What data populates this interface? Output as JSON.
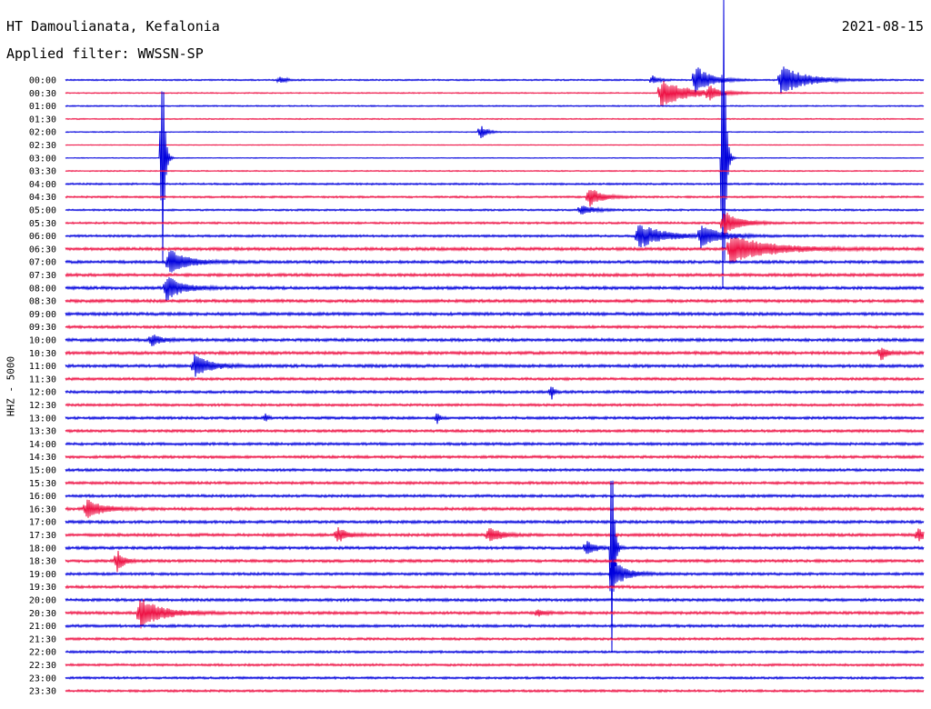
{
  "header": {
    "station": "HT Damoulianata, Kefalonia",
    "date": "2021-08-15",
    "filter": "Applied filter: WWSSN-SP"
  },
  "chart_data": {
    "type": "line",
    "subtype": "helicorder",
    "ylabel": "HHZ - 5000",
    "row_labels": [
      "00:00",
      "00:30",
      "01:00",
      "01:30",
      "02:00",
      "02:30",
      "03:00",
      "03:30",
      "04:00",
      "04:30",
      "05:00",
      "05:30",
      "06:00",
      "06:30",
      "07:00",
      "07:30",
      "08:00",
      "08:30",
      "09:00",
      "09:30",
      "10:00",
      "10:30",
      "11:00",
      "11:30",
      "12:00",
      "12:30",
      "13:00",
      "13:30",
      "14:00",
      "14:30",
      "15:00",
      "15:30",
      "16:00",
      "16:30",
      "17:00",
      "17:30",
      "18:00",
      "18:30",
      "19:00",
      "19:30",
      "20:00",
      "20:30",
      "21:00",
      "21:30",
      "22:00",
      "22:30",
      "23:00",
      "23:30"
    ],
    "colors": [
      "#0000dd",
      "#ee1144"
    ],
    "noise": [
      0.8,
      0.6,
      0.7,
      0.6,
      0.5,
      0.4,
      0.4,
      0.6,
      1.0,
      1.0,
      1.0,
      1.1,
      1.2,
      1.6,
      1.5,
      1.6,
      1.6,
      1.6,
      1.6,
      1.4,
      1.6,
      1.6,
      1.6,
      1.4,
      1.4,
      1.3,
      1.4,
      1.4,
      1.4,
      1.4,
      1.4,
      1.4,
      1.4,
      1.6,
      1.5,
      1.5,
      1.5,
      1.5,
      1.4,
      1.4,
      1.5,
      1.5,
      1.4,
      1.3,
      1.2,
      1.2,
      1.2,
      1.2
    ],
    "events": [
      {
        "row": 0,
        "minute": 7.5,
        "amp": 0.3,
        "dur": 0.2
      },
      {
        "row": 0,
        "minute": 20.5,
        "amp": 0.4,
        "dur": 0.2
      },
      {
        "row": 0,
        "minute": 22.0,
        "amp": 1.2,
        "dur": 0.5
      },
      {
        "row": 0,
        "minute": 25.0,
        "amp": 1.2,
        "dur": 0.8
      },
      {
        "row": 1,
        "minute": 20.8,
        "amp": 1.1,
        "dur": 0.9
      },
      {
        "row": 1,
        "minute": 22.5,
        "amp": 0.5,
        "dur": 0.3
      },
      {
        "row": 4,
        "minute": 14.5,
        "amp": 0.6,
        "dur": 0.2
      },
      {
        "row": 6,
        "minute": 3.4,
        "amp": 8.0,
        "dur": 0.05
      },
      {
        "row": 6,
        "minute": 23.0,
        "amp": 14.0,
        "dur": 0.05
      },
      {
        "row": 9,
        "minute": 18.3,
        "amp": 0.8,
        "dur": 0.4
      },
      {
        "row": 10,
        "minute": 18.0,
        "amp": 0.4,
        "dur": 0.4
      },
      {
        "row": 11,
        "minute": 23.0,
        "amp": 1.0,
        "dur": 0.5
      },
      {
        "row": 12,
        "minute": 20.0,
        "amp": 1.0,
        "dur": 0.8
      },
      {
        "row": 12,
        "minute": 22.2,
        "amp": 0.9,
        "dur": 0.6
      },
      {
        "row": 13,
        "minute": 23.2,
        "amp": 1.2,
        "dur": 1.2
      },
      {
        "row": 14,
        "minute": 3.6,
        "amp": 1.0,
        "dur": 0.6
      },
      {
        "row": 16,
        "minute": 3.5,
        "amp": 1.0,
        "dur": 0.5
      },
      {
        "row": 20,
        "minute": 3.0,
        "amp": 0.5,
        "dur": 0.3
      },
      {
        "row": 21,
        "minute": 28.5,
        "amp": 0.6,
        "dur": 0.2
      },
      {
        "row": 22,
        "minute": 4.5,
        "amp": 0.9,
        "dur": 0.5
      },
      {
        "row": 24,
        "minute": 17.0,
        "amp": 0.5,
        "dur": 0.1
      },
      {
        "row": 26,
        "minute": 7.0,
        "amp": 0.3,
        "dur": 0.1
      },
      {
        "row": 26,
        "minute": 13.0,
        "amp": 0.4,
        "dur": 0.1
      },
      {
        "row": 33,
        "minute": 0.7,
        "amp": 0.8,
        "dur": 0.5
      },
      {
        "row": 35,
        "minute": 9.5,
        "amp": 0.6,
        "dur": 0.3
      },
      {
        "row": 35,
        "minute": 14.8,
        "amp": 0.6,
        "dur": 0.4
      },
      {
        "row": 35,
        "minute": 29.8,
        "amp": 0.6,
        "dur": 0.2
      },
      {
        "row": 36,
        "minute": 18.2,
        "amp": 0.6,
        "dur": 0.3
      },
      {
        "row": 36,
        "minute": 19.1,
        "amp": 8.0,
        "dur": 0.05
      },
      {
        "row": 37,
        "minute": 1.8,
        "amp": 0.9,
        "dur": 0.2
      },
      {
        "row": 38,
        "minute": 19.1,
        "amp": 1.3,
        "dur": 0.4
      },
      {
        "row": 41,
        "minute": 2.6,
        "amp": 1.2,
        "dur": 0.7
      },
      {
        "row": 41,
        "minute": 16.5,
        "amp": 0.3,
        "dur": 0.2
      }
    ]
  }
}
